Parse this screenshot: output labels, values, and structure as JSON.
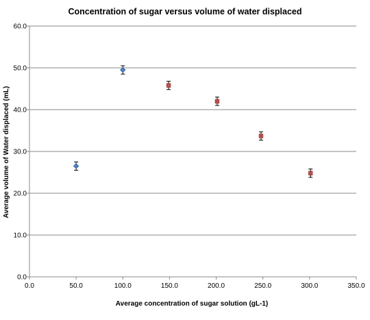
{
  "chart_data": {
    "type": "scatter",
    "title": "Concentration of sugar versus volume of water displaced",
    "xlabel": "Average concentration of sugar solution (gL-1)",
    "ylabel": "Average volume of Water displaced (mL)",
    "xlim": [
      0,
      350
    ],
    "ylim": [
      0,
      60
    ],
    "x_ticks": [
      "0.0",
      "50.0",
      "100.0",
      "150.0",
      "200.0",
      "250.0",
      "300.0",
      "350.0"
    ],
    "y_ticks": [
      "0.0",
      "10.0",
      "20.0",
      "30.0",
      "40.0",
      "50.0",
      "60.0"
    ],
    "grid": "horizontal",
    "legend": "none",
    "error_bars": "vertical",
    "series": [
      {
        "color": "#4f81bd",
        "marker": "diamond",
        "points": [
          {
            "x": 50,
            "y": 26.5,
            "err": 1.0
          },
          {
            "x": 100,
            "y": 49.5,
            "err": 1.0
          }
        ]
      },
      {
        "color": "#c0504d",
        "marker": "square",
        "points": [
          {
            "x": 149,
            "y": 45.8,
            "err": 1.0
          },
          {
            "x": 201,
            "y": 42.0,
            "err": 1.0
          },
          {
            "x": 248,
            "y": 33.7,
            "err": 1.0
          },
          {
            "x": 301,
            "y": 24.8,
            "err": 1.0
          }
        ]
      }
    ]
  }
}
